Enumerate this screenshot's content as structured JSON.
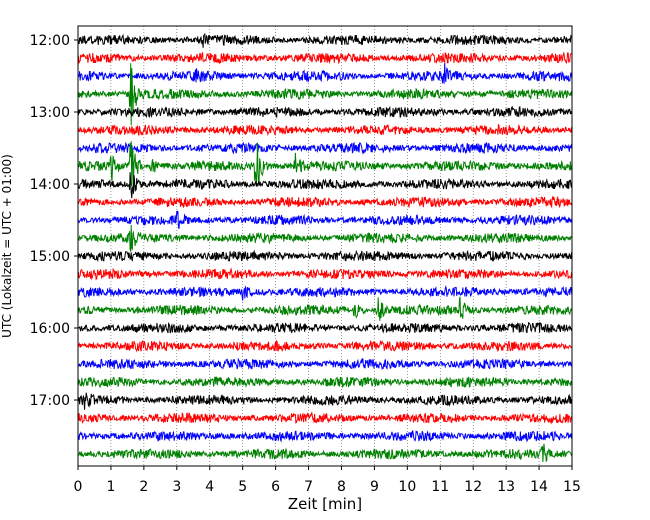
{
  "chart_data": {
    "type": "line",
    "subtype": "helicorder",
    "xlabel": "Zeit  [min]",
    "ylabel": "UTC (Lokalzeit = UTC + 01:00)",
    "xlim": [
      0,
      15
    ],
    "x_ticks": [
      0,
      1,
      2,
      3,
      4,
      5,
      6,
      7,
      8,
      9,
      10,
      11,
      12,
      13,
      14,
      15
    ],
    "y_ticks": [
      "12:00",
      "13:00",
      "14:00",
      "15:00",
      "16:00",
      "17:00"
    ],
    "trace_start": "12:00",
    "trace_interval_min": 15,
    "trace_count": 24,
    "color_cycle": [
      "#000000",
      "#ff0000",
      "#0000ff",
      "#008000"
    ],
    "grid": {
      "vertical_dotted": true
    },
    "events": [
      {
        "trace": 0,
        "minute": 3.8,
        "amp": 0.35
      },
      {
        "trace": 2,
        "minute": 3.6,
        "amp": 0.35
      },
      {
        "trace": 2,
        "minute": 11.1,
        "amp": 1.0
      },
      {
        "trace": 3,
        "minute": 1.6,
        "amp": 3.0
      },
      {
        "trace": 7,
        "minute": 1.0,
        "amp": 1.2
      },
      {
        "trace": 7,
        "minute": 1.6,
        "amp": 3.2
      },
      {
        "trace": 7,
        "minute": 2.2,
        "amp": 1.2
      },
      {
        "trace": 7,
        "minute": 5.4,
        "amp": 3.0
      },
      {
        "trace": 7,
        "minute": 6.6,
        "amp": 0.9
      },
      {
        "trace": 8,
        "minute": 1.6,
        "amp": 1.4
      },
      {
        "trace": 10,
        "minute": 3.0,
        "amp": 0.7
      },
      {
        "trace": 11,
        "minute": 1.6,
        "amp": 1.0
      },
      {
        "trace": 14,
        "minute": 5.0,
        "amp": 0.6
      },
      {
        "trace": 15,
        "minute": 9.1,
        "amp": 1.2
      },
      {
        "trace": 15,
        "minute": 8.4,
        "amp": 0.7
      },
      {
        "trace": 15,
        "minute": 11.6,
        "amp": 1.1
      },
      {
        "trace": 20,
        "minute": 0.2,
        "amp": 0.5
      },
      {
        "trace": 23,
        "minute": 14.1,
        "amp": 0.9
      }
    ]
  }
}
